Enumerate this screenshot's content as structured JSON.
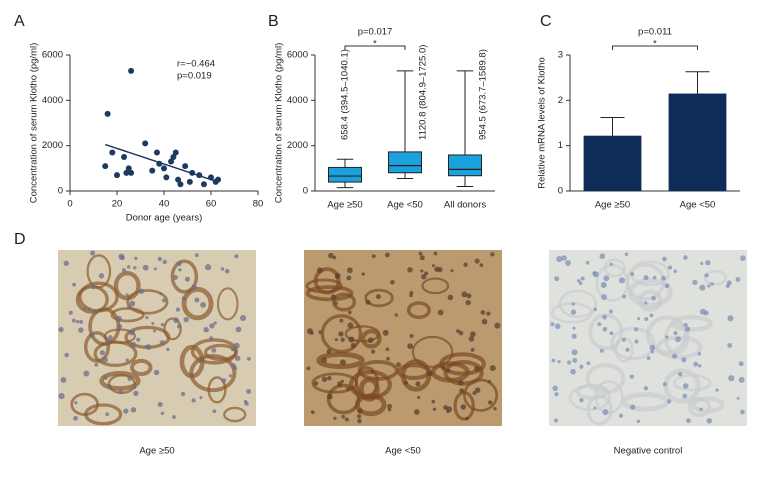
{
  "chart_data": [
    {
      "type": "scatter",
      "panel": "A",
      "x_label": "Donor age (years)",
      "y_label": "Concentration of serum Klotho (pg/ml)",
      "annotations": [
        "r=−0.464",
        "p=0.019"
      ],
      "xlim": [
        0,
        80
      ],
      "xticks": [
        0,
        20,
        40,
        60,
        80
      ],
      "ylim": [
        0,
        6000
      ],
      "yticks": [
        0,
        2000,
        4000,
        6000
      ],
      "color": "#1d3a60",
      "x": [
        15,
        16,
        18,
        20,
        23,
        24,
        25,
        26,
        26,
        32,
        35,
        37,
        38,
        40,
        41,
        43,
        44,
        45,
        46,
        47,
        49,
        51,
        52,
        55,
        57,
        60,
        62,
        63
      ],
      "values": [
        1100,
        3400,
        1700,
        700,
        1500,
        800,
        1000,
        5300,
        800,
        2100,
        900,
        1700,
        1200,
        1000,
        600,
        1300,
        1500,
        1700,
        500,
        300,
        1100,
        400,
        800,
        700,
        300,
        600,
        400,
        500
      ],
      "trendline": {
        "x": [
          15,
          63
        ],
        "values": [
          2050,
          400
        ]
      }
    },
    {
      "type": "box",
      "panel": "B",
      "y_label": "Concentration of serum Klotho (pg/ml)",
      "annotations": [
        "p=0.017",
        "*"
      ],
      "categories": [
        "Age ≥50",
        "Age <50",
        "All donors"
      ],
      "ylim": [
        0,
        6000
      ],
      "yticks": [
        0,
        2000,
        4000,
        6000
      ],
      "color": "#1ba1dc",
      "min": [
        150,
        550,
        200
      ],
      "q1": [
        394.5,
        804.9,
        673.7
      ],
      "median": [
        658.4,
        1120.8,
        954.5
      ],
      "q3": [
        1040.1,
        1725.0,
        1589.8
      ],
      "max": [
        1400,
        5300,
        5300
      ],
      "value_labels": [
        "658.4 (394.5–1040.1)",
        "1120.8 (804.9–1725.0)",
        "954.5 (673.7–1589.8)"
      ]
    },
    {
      "type": "bar",
      "panel": "C",
      "y_label": "Relative mRNA levels of Klotho",
      "annotations": [
        "p=0.011",
        "*"
      ],
      "categories": [
        "Age ≥50",
        "Age <50"
      ],
      "ylim": [
        0,
        3
      ],
      "yticks": [
        0,
        1,
        2,
        3
      ],
      "color": "#0e2c58",
      "values": [
        1.22,
        2.15
      ],
      "errors": [
        0.4,
        0.48
      ]
    }
  ],
  "panel_d": {
    "panel": "D",
    "images": [
      {
        "label": "Age ≥50"
      },
      {
        "label": "Age <50"
      },
      {
        "label": "Negative control"
      }
    ]
  }
}
